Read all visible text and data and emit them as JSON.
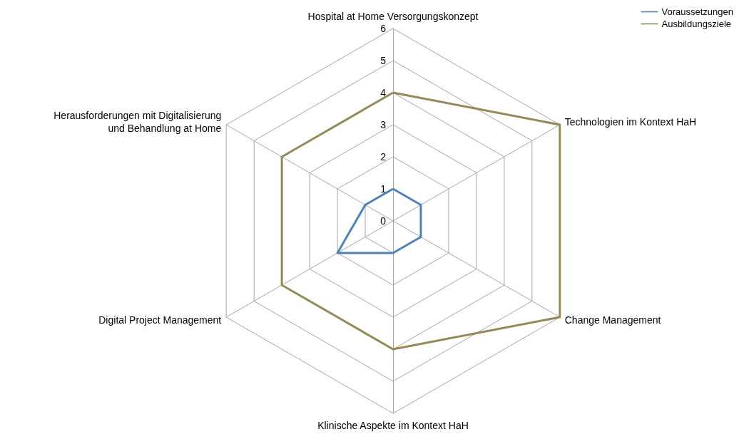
{
  "chart_data": {
    "type": "radar",
    "categories": [
      "Hospital at Home Versorgungskonzept",
      "Technologien im Kontext HaH",
      "Change Management",
      "Klinische Aspekte im Kontext HaH",
      "Digital Project Management",
      "Herausforderungen mit Digitalisierung\nund Behandlung at Home"
    ],
    "series": [
      {
        "name": "Voraussetzungen",
        "color": "#4f81bd",
        "values": [
          1,
          1,
          1,
          1,
          2,
          1
        ]
      },
      {
        "name": "Ausbildungsziele",
        "color": "#948a54",
        "values": [
          4,
          6,
          6,
          4,
          4,
          4
        ]
      }
    ],
    "ylim": [
      0,
      6
    ],
    "yticks": [
      0,
      1,
      2,
      3,
      4,
      5,
      6
    ],
    "grid": true,
    "legend": "top right",
    "marker": "none",
    "line_style": "solid"
  }
}
